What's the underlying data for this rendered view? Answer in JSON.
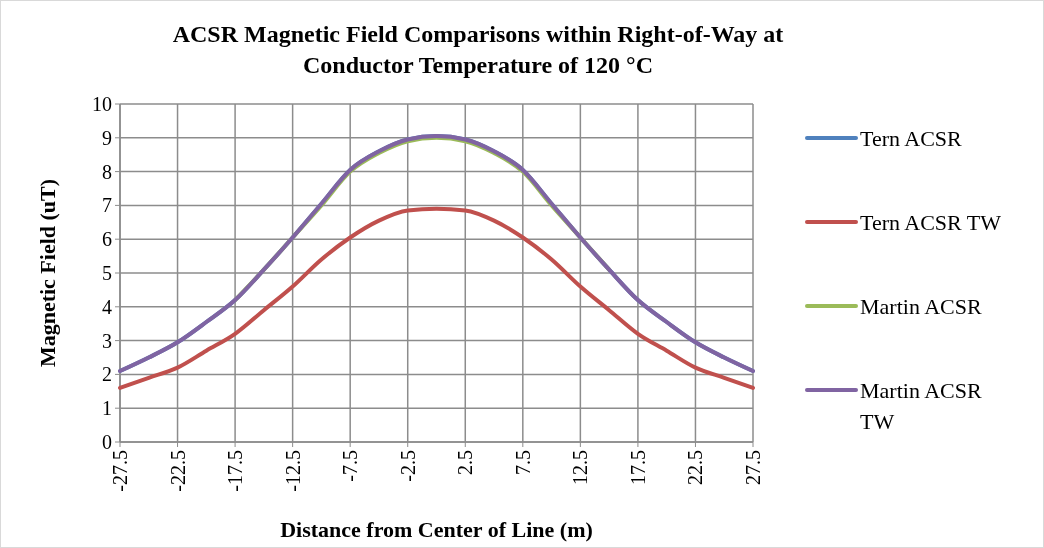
{
  "chart_data": {
    "type": "line",
    "title": "ACSR Magnetic Field Comparisons within Right-of-Way at Conductor Temperature of 120 °C",
    "xlabel": "Distance from Center of Line (m)",
    "ylabel": "Magnetic Field (uT)",
    "x": [
      -27.5,
      -25,
      -22.5,
      -20,
      -17.5,
      -15,
      -12.5,
      -10,
      -7.5,
      -5,
      -2.5,
      0,
      2.5,
      5,
      7.5,
      10,
      12.5,
      15,
      17.5,
      20,
      22.5,
      25,
      27.5
    ],
    "xlim": [
      -27.5,
      27.5
    ],
    "xticks": [
      -27.5,
      -22.5,
      -17.5,
      -12.5,
      -7.5,
      -2.5,
      2.5,
      7.5,
      12.5,
      17.5,
      22.5,
      27.5
    ],
    "ylim": [
      0,
      10
    ],
    "yticks": [
      0,
      1,
      2,
      3,
      4,
      5,
      6,
      7,
      8,
      9,
      10
    ],
    "grid": true,
    "legend": "right",
    "line_style": "solid",
    "marker": "none",
    "series": [
      {
        "name": "Tern ACSR",
        "color": "#4f81bd",
        "values": [
          2.1,
          2.5,
          2.95,
          3.55,
          4.2,
          5.1,
          6.05,
          7.05,
          8.05,
          8.6,
          8.95,
          9.05,
          8.95,
          8.6,
          8.05,
          7.05,
          6.05,
          5.1,
          4.2,
          3.55,
          2.95,
          2.5,
          2.1
        ]
      },
      {
        "name": "Tern ACSR TW",
        "color": "#c0504d",
        "values": [
          1.6,
          1.9,
          2.2,
          2.7,
          3.2,
          3.9,
          4.6,
          5.4,
          6.05,
          6.55,
          6.85,
          6.9,
          6.85,
          6.55,
          6.05,
          5.4,
          4.6,
          3.9,
          3.2,
          2.7,
          2.2,
          1.9,
          1.6
        ]
      },
      {
        "name": "Martin ACSR",
        "color": "#9bbb59",
        "values": [
          null,
          null,
          null,
          null,
          4.2,
          5.1,
          6.05,
          7.0,
          8.0,
          8.55,
          8.9,
          9.0,
          8.9,
          8.55,
          8.0,
          7.0,
          6.05,
          5.1,
          null,
          null,
          null,
          null,
          null
        ]
      },
      {
        "name": "Martin ACSR TW",
        "color": "#8064a2",
        "values": [
          2.1,
          2.5,
          2.95,
          3.55,
          4.2,
          5.1,
          6.05,
          7.05,
          8.05,
          8.6,
          8.95,
          9.05,
          8.95,
          8.6,
          8.05,
          7.05,
          6.05,
          5.1,
          4.2,
          3.55,
          2.95,
          2.5,
          2.1
        ]
      }
    ]
  }
}
